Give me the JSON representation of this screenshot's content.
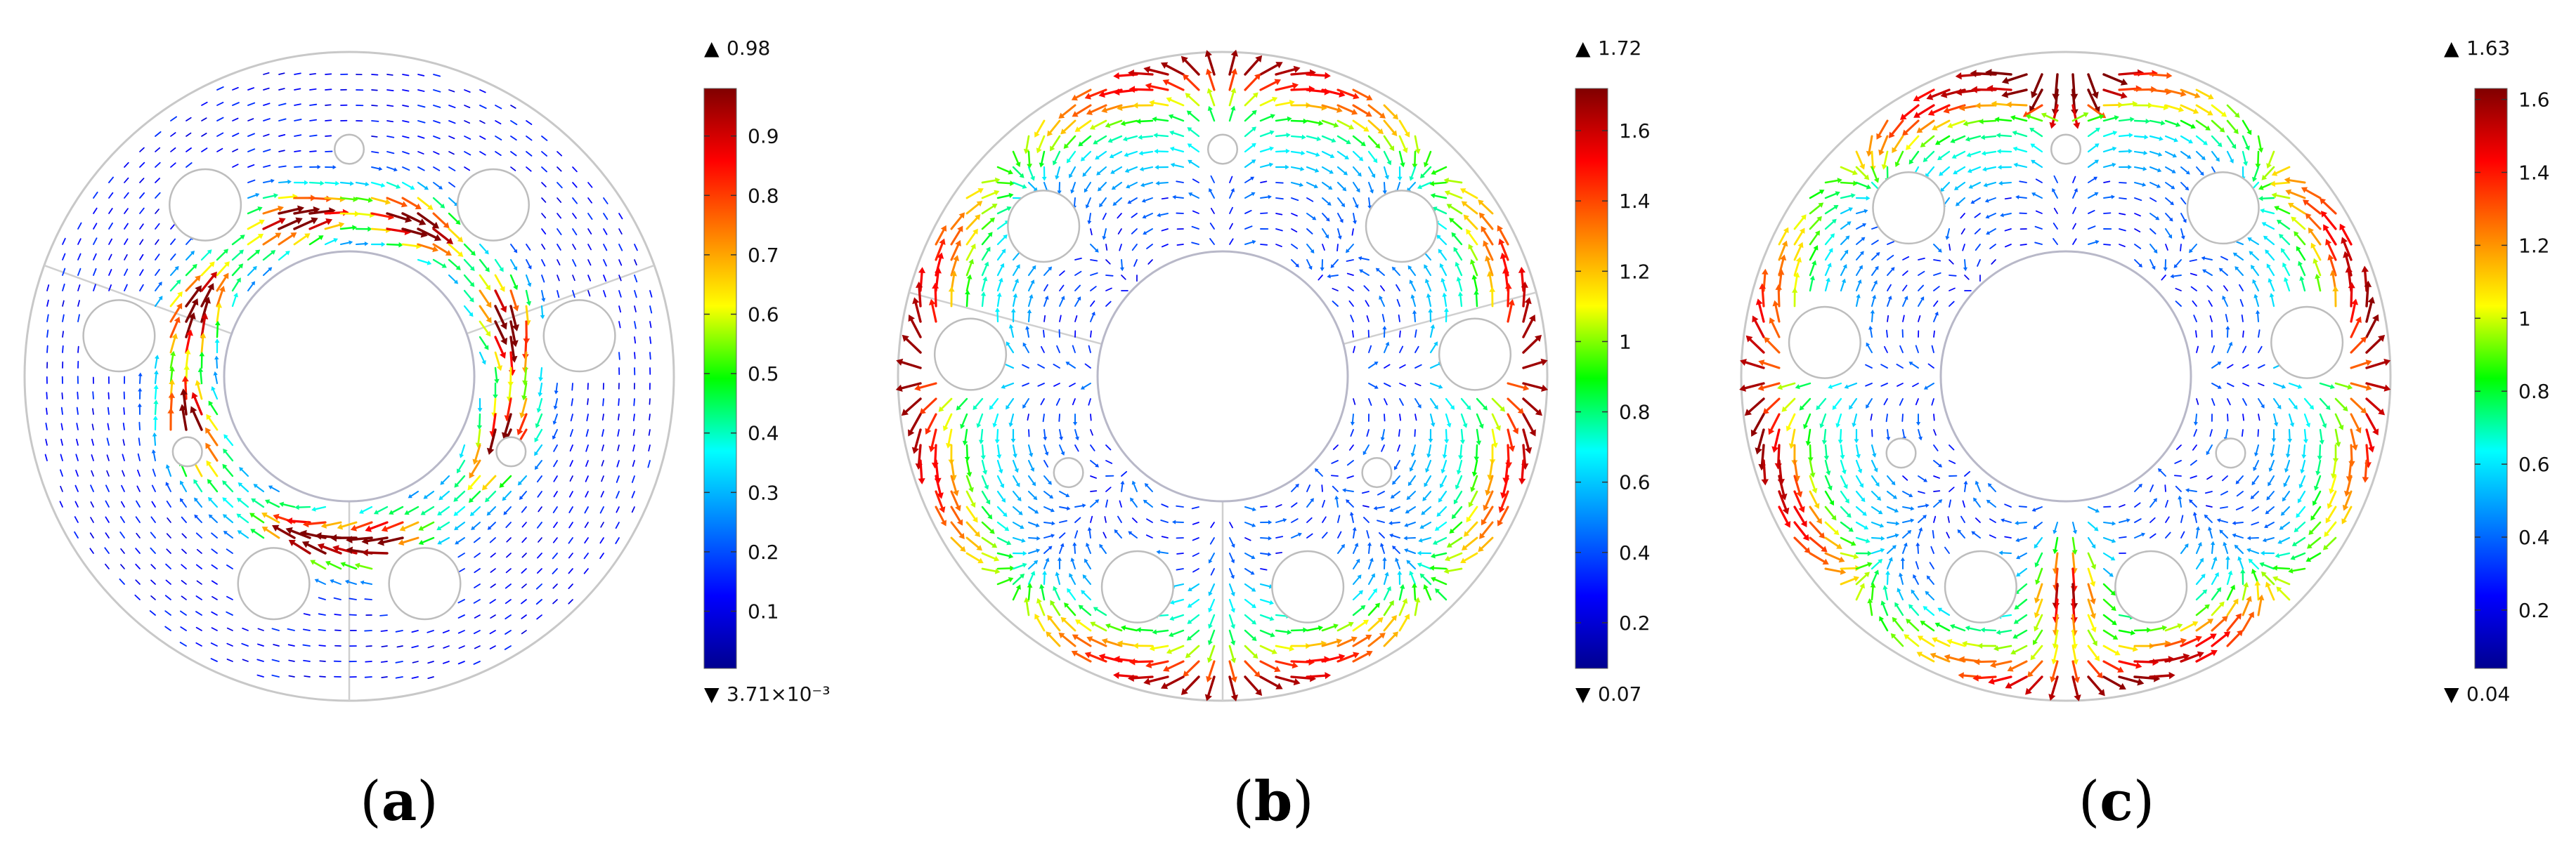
{
  "panels": [
    {
      "id": "a",
      "caption_open": "(",
      "caption_letter": "a",
      "caption_close": ")",
      "max_label": "0.98",
      "min_label": "3.71×10⁻³",
      "ticks": [
        "0.1",
        "0.2",
        "0.3",
        "0.4",
        "0.5",
        "0.6",
        "0.7",
        "0.8",
        "0.9"
      ],
      "tick_values": [
        0.1,
        0.2,
        0.3,
        0.4,
        0.5,
        0.6,
        0.7,
        0.8,
        0.9
      ],
      "range": [
        0.00371,
        0.98
      ],
      "pattern": "a"
    },
    {
      "id": "b",
      "caption_open": "(",
      "caption_letter": "b",
      "caption_close": ")",
      "max_label": "1.72",
      "min_label": "0.07",
      "ticks": [
        "0.2",
        "0.4",
        "0.6",
        "0.8",
        "1",
        "1.2",
        "1.4",
        "1.6"
      ],
      "tick_values": [
        0.2,
        0.4,
        0.6,
        0.8,
        1.0,
        1.2,
        1.4,
        1.6
      ],
      "range": [
        0.07,
        1.72
      ],
      "pattern": "b"
    },
    {
      "id": "c",
      "caption_open": "(",
      "caption_letter": "c",
      "caption_close": ")",
      "max_label": "1.63",
      "min_label": "0.04",
      "ticks": [
        "0.2",
        "0.4",
        "0.6",
        "0.8",
        "1",
        "1.2",
        "1.4",
        "1.6"
      ],
      "tick_values": [
        0.2,
        0.4,
        0.6,
        0.8,
        1.0,
        1.2,
        1.4,
        1.6
      ],
      "range": [
        0.04,
        1.63
      ],
      "pattern": "c"
    }
  ],
  "colormap": [
    "#00008f",
    "#0000ff",
    "#00ffff",
    "#00ff00",
    "#ffff00",
    "#ff0000",
    "#800000"
  ],
  "marker_up": "▲",
  "marker_down": "▼"
}
